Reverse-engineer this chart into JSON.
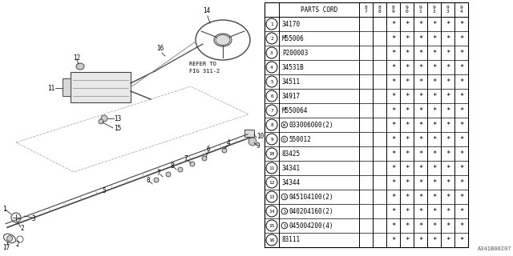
{
  "diagram_ref": "A341B00207",
  "col_headers": [
    "8\n7",
    "8\n8",
    "8\n9",
    "9\n0",
    "9\n1",
    "9\n3",
    "9\n3",
    "9\n4"
  ],
  "parts": [
    {
      "num": "1",
      "prefix": "",
      "code": "34170",
      "stars": [
        0,
        0,
        1,
        1,
        1,
        1,
        1,
        1
      ]
    },
    {
      "num": "2",
      "prefix": "",
      "code": "M55006",
      "stars": [
        0,
        0,
        1,
        1,
        1,
        1,
        1,
        1
      ]
    },
    {
      "num": "3",
      "prefix": "",
      "code": "P200003",
      "stars": [
        0,
        0,
        1,
        1,
        1,
        1,
        1,
        1
      ]
    },
    {
      "num": "4",
      "prefix": "",
      "code": "34531B",
      "stars": [
        0,
        0,
        1,
        1,
        1,
        1,
        1,
        1
      ]
    },
    {
      "num": "5",
      "prefix": "",
      "code": "34511",
      "stars": [
        0,
        0,
        1,
        1,
        1,
        1,
        1,
        1
      ]
    },
    {
      "num": "6",
      "prefix": "",
      "code": "34917",
      "stars": [
        0,
        0,
        1,
        1,
        1,
        1,
        1,
        1
      ]
    },
    {
      "num": "7",
      "prefix": "",
      "code": "M550064",
      "stars": [
        0,
        0,
        1,
        1,
        1,
        1,
        1,
        1
      ]
    },
    {
      "num": "8",
      "prefix": "W",
      "code": "033006000(2)",
      "stars": [
        0,
        0,
        1,
        1,
        1,
        1,
        1,
        1
      ]
    },
    {
      "num": "9",
      "prefix": "Q",
      "code": "550012",
      "stars": [
        0,
        0,
        1,
        1,
        1,
        1,
        1,
        1
      ]
    },
    {
      "num": "10",
      "prefix": "",
      "code": "83425",
      "stars": [
        0,
        0,
        1,
        1,
        1,
        1,
        1,
        1
      ]
    },
    {
      "num": "11",
      "prefix": "",
      "code": "34341",
      "stars": [
        0,
        0,
        1,
        1,
        1,
        1,
        1,
        1
      ]
    },
    {
      "num": "12",
      "prefix": "",
      "code": "34344",
      "stars": [
        0,
        0,
        1,
        1,
        1,
        1,
        1,
        1
      ]
    },
    {
      "num": "13",
      "prefix": "S",
      "code": "045104100(2)",
      "stars": [
        0,
        0,
        1,
        1,
        1,
        1,
        1,
        1
      ]
    },
    {
      "num": "14",
      "prefix": "S",
      "code": "040204160(2)",
      "stars": [
        0,
        0,
        1,
        1,
        1,
        1,
        1,
        1
      ]
    },
    {
      "num": "15",
      "prefix": "S",
      "code": "045004200(4)",
      "stars": [
        0,
        0,
        1,
        1,
        1,
        1,
        1,
        1
      ]
    },
    {
      "num": "16",
      "prefix": "",
      "code": "83111",
      "stars": [
        0,
        0,
        1,
        1,
        1,
        1,
        1,
        1
      ]
    }
  ],
  "bg_color": "#ffffff",
  "line_color": "#000000",
  "text_color": "#000000"
}
